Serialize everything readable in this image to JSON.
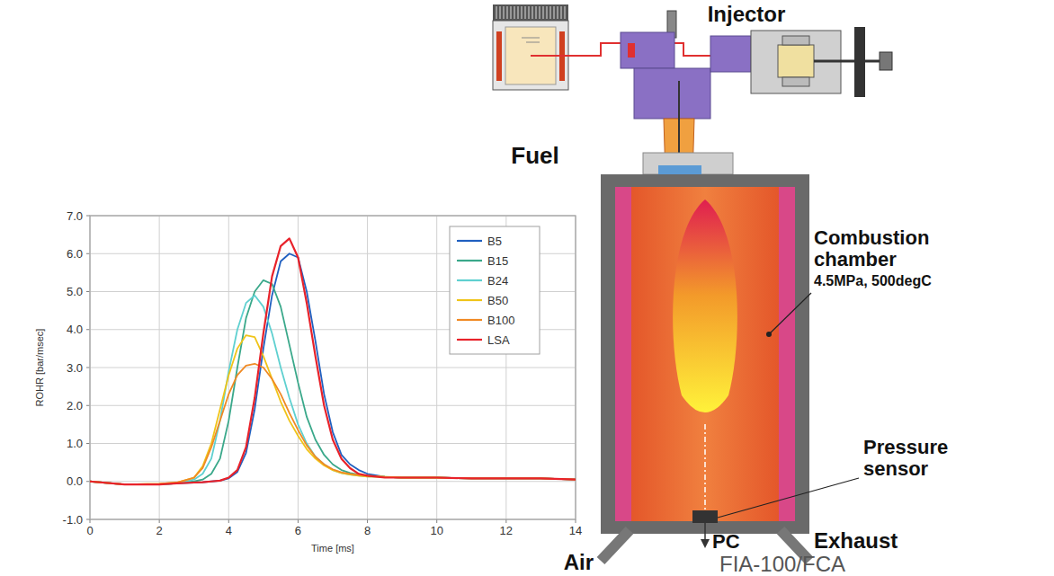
{
  "chart_data": {
    "type": "line",
    "x_label": "Time [ms]",
    "y_label": "ROHR [bar/msec]",
    "x": [
      0,
      1,
      2,
      2.5,
      3,
      3.25,
      3.5,
      3.75,
      4,
      4.25,
      4.5,
      4.75,
      5,
      5.25,
      5.5,
      5.75,
      6,
      6.25,
      6.5,
      6.75,
      7,
      7.25,
      7.5,
      7.75,
      8,
      8.5,
      9,
      10,
      11,
      12,
      13,
      14
    ],
    "series": [
      {
        "name": "B5",
        "color": "#2060c0",
        "values": [
          0,
          -0.08,
          -0.08,
          -0.05,
          -0.03,
          -0.02,
          0,
          0.02,
          0.08,
          0.25,
          0.75,
          1.9,
          3.5,
          4.9,
          5.8,
          6.0,
          5.9,
          5.0,
          3.7,
          2.3,
          1.3,
          0.7,
          0.45,
          0.3,
          0.2,
          0.12,
          0.1,
          0.1,
          0.08,
          0.08,
          0.08,
          0.05
        ]
      },
      {
        "name": "B15",
        "color": "#3aa88a",
        "values": [
          0,
          -0.08,
          -0.08,
          -0.05,
          0,
          0.05,
          0.2,
          0.6,
          1.6,
          3.0,
          4.3,
          5.0,
          5.3,
          5.2,
          4.6,
          3.6,
          2.6,
          1.7,
          1.1,
          0.7,
          0.45,
          0.3,
          0.22,
          0.18,
          0.15,
          0.12,
          0.1,
          0.1,
          0.08,
          0.08,
          0.08,
          0.05
        ]
      },
      {
        "name": "B24",
        "color": "#5fd0d0",
        "values": [
          0,
          -0.08,
          -0.08,
          -0.05,
          0.05,
          0.2,
          0.6,
          1.6,
          2.9,
          4.0,
          4.7,
          4.9,
          4.6,
          3.9,
          3.0,
          2.2,
          1.5,
          1.0,
          0.65,
          0.45,
          0.3,
          0.22,
          0.18,
          0.15,
          0.13,
          0.12,
          0.1,
          0.1,
          0.08,
          0.08,
          0.08,
          0.05
        ]
      },
      {
        "name": "B50",
        "color": "#f0c419",
        "values": [
          0,
          -0.08,
          -0.06,
          -0.03,
          0.1,
          0.4,
          1.0,
          1.9,
          2.8,
          3.5,
          3.85,
          3.8,
          3.3,
          2.7,
          2.1,
          1.6,
          1.2,
          0.85,
          0.6,
          0.42,
          0.3,
          0.22,
          0.18,
          0.15,
          0.13,
          0.12,
          0.1,
          0.1,
          0.08,
          0.08,
          0.08,
          0.05
        ]
      },
      {
        "name": "B100",
        "color": "#f08a24",
        "values": [
          0,
          -0.08,
          -0.06,
          -0.03,
          0.1,
          0.35,
          0.9,
          1.6,
          2.3,
          2.8,
          3.05,
          3.1,
          3.0,
          2.7,
          2.3,
          1.8,
          1.35,
          0.95,
          0.65,
          0.45,
          0.32,
          0.24,
          0.2,
          0.17,
          0.15,
          0.12,
          0.1,
          0.1,
          0.08,
          0.08,
          0.08,
          0.05
        ]
      },
      {
        "name": "LSA",
        "color": "#e8222a",
        "values": [
          0,
          -0.08,
          -0.08,
          -0.05,
          -0.03,
          -0.02,
          0,
          0.02,
          0.1,
          0.3,
          0.9,
          2.2,
          3.9,
          5.4,
          6.2,
          6.4,
          5.9,
          4.7,
          3.3,
          2.0,
          1.1,
          0.6,
          0.35,
          0.2,
          0.15,
          0.1,
          0.1,
          0.1,
          0.08,
          0.08,
          0.08,
          0.05
        ]
      }
    ],
    "xlim": [
      0,
      14
    ],
    "xticks": [
      0,
      2,
      4,
      6,
      8,
      10,
      12,
      14
    ],
    "ylim": [
      -1,
      7
    ],
    "yticks": [
      {
        "value": -1,
        "label": "-1.0"
      },
      {
        "value": 0,
        "label": "0.0"
      },
      {
        "value": 1,
        "label": "1.0"
      },
      {
        "value": 2,
        "label": "2.0"
      },
      {
        "value": 3,
        "label": "3.0"
      },
      {
        "value": 4,
        "label": "4.0"
      },
      {
        "value": 5,
        "label": "5.0"
      },
      {
        "value": 6,
        "label": "6.0"
      },
      {
        "value": 7,
        "label": "7.0"
      }
    ],
    "grid": true,
    "legend": "upper right"
  },
  "diagram": {
    "injector": "Injector",
    "fuel": "Fuel",
    "chamber": "Combustion chamber",
    "chamber_condition": "4.5MPa, 500degC",
    "sensor": "Pressure sensor",
    "air": "Air",
    "pc": "PC",
    "exhaust": "Exhaust",
    "caption": "FIA-100/FCA"
  }
}
